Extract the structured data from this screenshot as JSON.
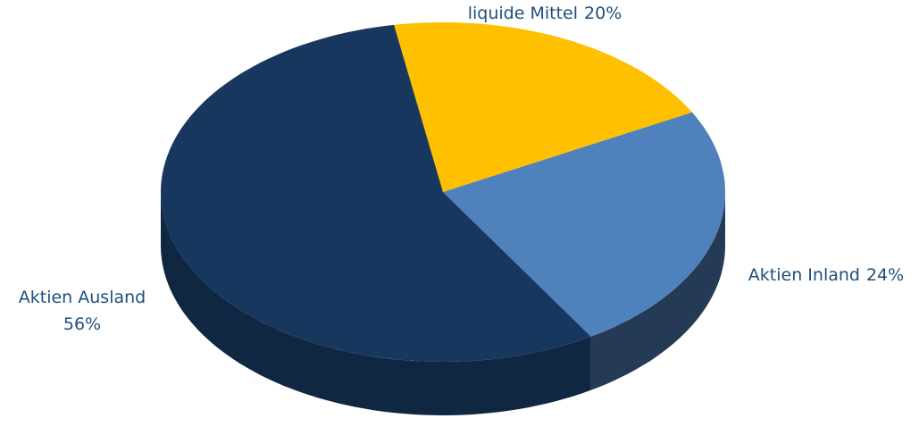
{
  "chart_data": {
    "type": "pie",
    "categories": [
      "liquide Mittel",
      "Aktien Inland",
      "Aktien Ausland"
    ],
    "values": [
      20,
      24,
      56
    ],
    "value_labels": [
      "20%",
      "24%",
      "56%"
    ],
    "colors": [
      "#ffc000",
      "#4f81bd",
      "#17375e"
    ]
  }
}
